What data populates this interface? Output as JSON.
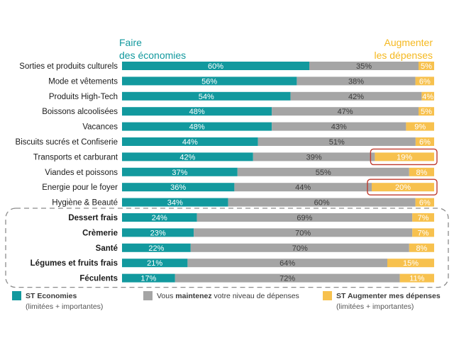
{
  "chart_data": {
    "type": "bar",
    "stacked": true,
    "orientation": "horizontal",
    "headers": {
      "left_line1": "Faire",
      "left_line2": "des économies",
      "right_line1": "Augmenter",
      "right_line2": "les dépenses"
    },
    "categories": [
      "Sorties et produits culturels",
      "Mode et vêtements",
      "Produits High-Tech",
      "Boissons alcoolisées",
      "Vacances",
      "Biscuits sucrés et Confiserie",
      "Transports et carburant",
      "Viandes et poissons",
      "Energie pour le foyer",
      "Hygiène & Beauté",
      "Dessert frais",
      "Crèmerie",
      "Santé",
      "Légumes et fruits frais",
      "Féculents"
    ],
    "bold_categories": [
      "Dessert frais",
      "Crèmerie",
      "Santé",
      "Légumes et fruits frais",
      "Féculents"
    ],
    "highlighted_categories": [
      "Transports et carburant",
      "Energie pour le foyer"
    ],
    "grouped_categories": [
      "Dessert frais",
      "Crèmerie",
      "Santé",
      "Légumes et fruits frais",
      "Féculents"
    ],
    "series": [
      {
        "name": "ST Economies",
        "name_sub": "(limitées + importantes)",
        "color": "#12999e",
        "values": [
          60,
          56,
          54,
          48,
          48,
          44,
          42,
          37,
          36,
          34,
          24,
          23,
          22,
          21,
          17
        ]
      },
      {
        "name_pre": "Vous ",
        "name_bold": "maintenez",
        "name_post": " votre niveau de dépenses",
        "color": "#a5a5a5",
        "values": [
          35,
          38,
          42,
          47,
          43,
          51,
          39,
          55,
          44,
          60,
          69,
          70,
          70,
          64,
          72
        ]
      },
      {
        "name": "ST Augmenter mes dépenses",
        "name_sub": "(limitées + importantes)",
        "color": "#f7c14e",
        "values": [
          5,
          6,
          4,
          5,
          9,
          6,
          19,
          8,
          20,
          6,
          7,
          7,
          8,
          15,
          11
        ]
      }
    ],
    "value_suffix": "%",
    "colors": {
      "teal": "#12999e",
      "grey": "#a5a5a5",
      "yellow": "#f7c14e",
      "header_left": "#12999e",
      "header_right": "#f5b81f",
      "highlight": "#c0392b",
      "dashed": "#8c8c8c"
    }
  }
}
